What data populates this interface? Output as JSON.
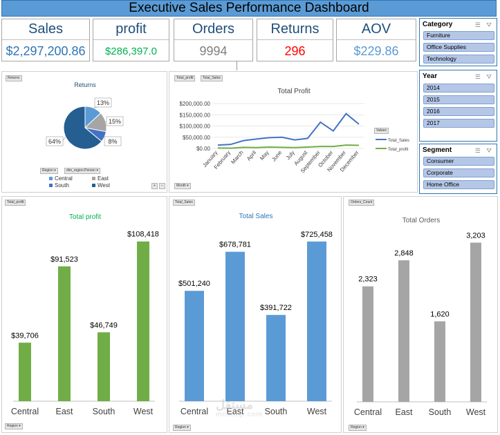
{
  "title": "Executive Sales Performance Dashboard",
  "kpis": {
    "sales": {
      "label": "Sales",
      "value": "$2,297,200.86",
      "color": "#2e75b6"
    },
    "profit": {
      "label": "profit",
      "value": "$286,397.0",
      "color": "#00b050"
    },
    "orders": {
      "label": "Orders",
      "value": "9994",
      "color": "#7f7f7f"
    },
    "returns": {
      "label": "Returns",
      "value": "296",
      "color": "#ff0000"
    },
    "aov": {
      "label": "AOV",
      "value": "$229.86",
      "color": "#5b9bd5"
    }
  },
  "field_buttons": {
    "returns": "Returns",
    "region": "Region",
    "person": "dim_region.Person",
    "total_profit": "Total_profit",
    "total_sales": "Total_Sales",
    "values": "Values",
    "month": "Month",
    "orders_count": "Orders_Count"
  },
  "slicers": {
    "category": {
      "label": "Category",
      "items": [
        "Furniture",
        "Office Supplies",
        "Technology"
      ]
    },
    "year": {
      "label": "Year",
      "items": [
        "2014",
        "2015",
        "2016",
        "2017"
      ]
    },
    "segment": {
      "label": "Segment",
      "items": [
        "Consumer",
        "Corporate",
        "Home Office"
      ]
    }
  },
  "watermark": {
    "arabic": "مستقل",
    "latin": "mostaql.com"
  },
  "chart_data": [
    {
      "type": "pie",
      "title": "Returns",
      "categories": [
        "Central",
        "East",
        "South",
        "West"
      ],
      "values": [
        13,
        15,
        8,
        64
      ],
      "labels": [
        "13%",
        "15%",
        "8%",
        "64%"
      ],
      "colors": [
        "#5b9bd5",
        "#a5a5a5",
        "#4472c4",
        "#255e91"
      ],
      "legend": "bottom"
    },
    {
      "type": "line",
      "title": "Total Profit",
      "x": [
        "January",
        "February",
        "March",
        "April",
        "May",
        "June",
        "July",
        "August",
        "September",
        "October",
        "November",
        "December"
      ],
      "series": [
        {
          "name": "Total_Sales",
          "color": "#4472c4",
          "values": [
            15000,
            18000,
            35000,
            42000,
            48000,
            50000,
            38000,
            45000,
            117000,
            78000,
            155000,
            108000
          ]
        },
        {
          "name": "Total_profit",
          "color": "#70ad47",
          "values": [
            2000,
            1000,
            5000,
            4000,
            6000,
            5000,
            4000,
            6000,
            9000,
            9000,
            15000,
            14000
          ]
        }
      ],
      "yticks": [
        "$0.00",
        "$50,000.00",
        "$100,000.00",
        "$150,000.00",
        "$200,000.00"
      ],
      "ylim": [
        0,
        200000
      ],
      "legend": "right"
    },
    {
      "type": "bar",
      "title": "Total profit",
      "title_color": "#00b050",
      "categories": [
        "Central",
        "East",
        "South",
        "West"
      ],
      "values": [
        39706,
        91523,
        46749,
        108418
      ],
      "labels": [
        "$39,706",
        "$91,523",
        "$46,749",
        "$108,418"
      ],
      "color": "#70ad47",
      "ylim": [
        0,
        120000
      ]
    },
    {
      "type": "bar",
      "title": "Total Sales",
      "title_color": "#2e75b6",
      "categories": [
        "Central",
        "East",
        "South",
        "West"
      ],
      "values": [
        501240,
        678781,
        391722,
        725458
      ],
      "labels": [
        "$501,240",
        "$678,781",
        "$391,722",
        "$725,458"
      ],
      "color": "#5b9bd5",
      "ylim": [
        0,
        800000
      ]
    },
    {
      "type": "bar",
      "title": "Total Orders",
      "title_color": "#595959",
      "categories": [
        "Central",
        "East",
        "South",
        "West"
      ],
      "values": [
        2323,
        2848,
        1620,
        3203
      ],
      "labels": [
        "2,323",
        "2,848",
        "1,620",
        "3,203"
      ],
      "color": "#a5a5a5",
      "ylim": [
        0,
        3500
      ]
    }
  ]
}
